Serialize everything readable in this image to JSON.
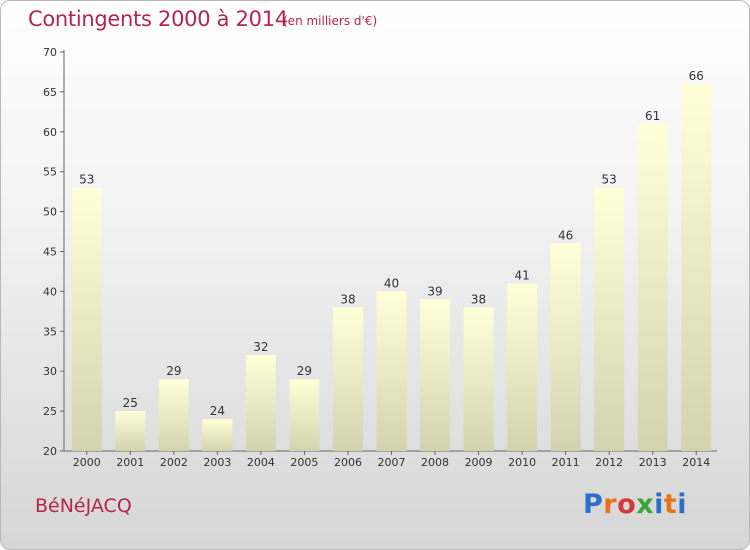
{
  "header": {
    "title": "Contingents 2000 à 2014",
    "subtitle": "(en milliers d'€)"
  },
  "footer": {
    "commune": "BéNéJACQ",
    "logo_text": "Proxiti",
    "logo_colors": [
      "#2b6fc9",
      "#e8731a",
      "#d23a3a",
      "#3aa635",
      "#2b6fc9",
      "#e8731a",
      "#2b6fc9"
    ]
  },
  "chart_data": {
    "type": "bar",
    "categories": [
      "2000",
      "2001",
      "2002",
      "2003",
      "2004",
      "2005",
      "2006",
      "2007",
      "2008",
      "2009",
      "2010",
      "2011",
      "2012",
      "2013",
      "2014"
    ],
    "values": [
      53,
      25,
      29,
      24,
      32,
      29,
      38,
      40,
      39,
      38,
      41,
      46,
      53,
      61,
      66
    ],
    "title": "Contingents 2000 à 2014",
    "ylim": [
      20,
      70
    ],
    "yticks": [
      20,
      25,
      30,
      35,
      40,
      45,
      50,
      55,
      60,
      65,
      70
    ],
    "grid": false,
    "data_labels": true,
    "bar_color_top": "#ffffd8",
    "bar_color_bottom": "#d3d3b0"
  }
}
